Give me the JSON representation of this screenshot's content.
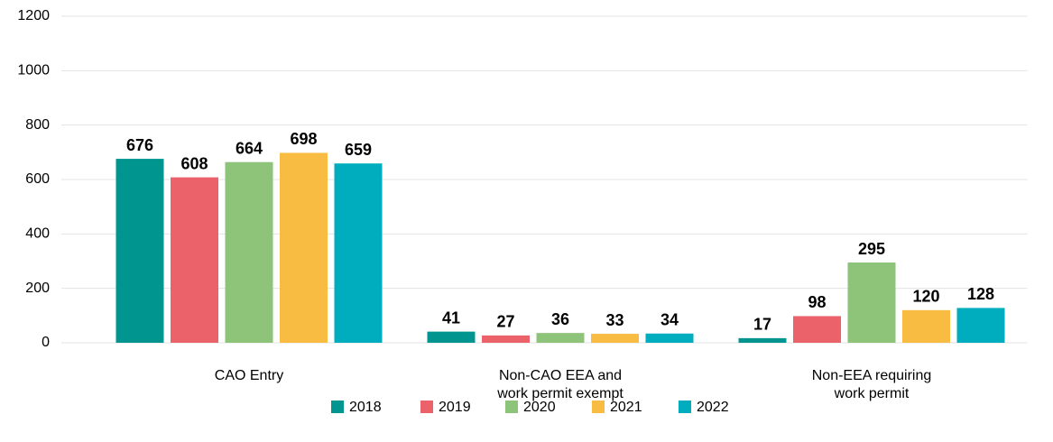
{
  "chart_data": {
    "type": "bar",
    "categories": [
      "CAO Entry",
      "Non-CAO EEA and\nwork permit exempt",
      "Non-EEA requiring\nwork permit"
    ],
    "series": [
      {
        "name": "2018",
        "color": "#00968f",
        "values": [
          676,
          41,
          17
        ]
      },
      {
        "name": "2019",
        "color": "#eb626b",
        "values": [
          608,
          27,
          98
        ]
      },
      {
        "name": "2020",
        "color": "#8dc47a",
        "values": [
          664,
          36,
          295
        ]
      },
      {
        "name": "2021",
        "color": "#f9bc43",
        "values": [
          698,
          33,
          120
        ]
      },
      {
        "name": "2022",
        "color": "#00adbf",
        "values": [
          659,
          34,
          128
        ]
      }
    ],
    "ylim": [
      0,
      1200
    ],
    "yticks": [
      0,
      200,
      400,
      600,
      800,
      1000,
      1200
    ],
    "grid": true,
    "legend": "bottom"
  }
}
